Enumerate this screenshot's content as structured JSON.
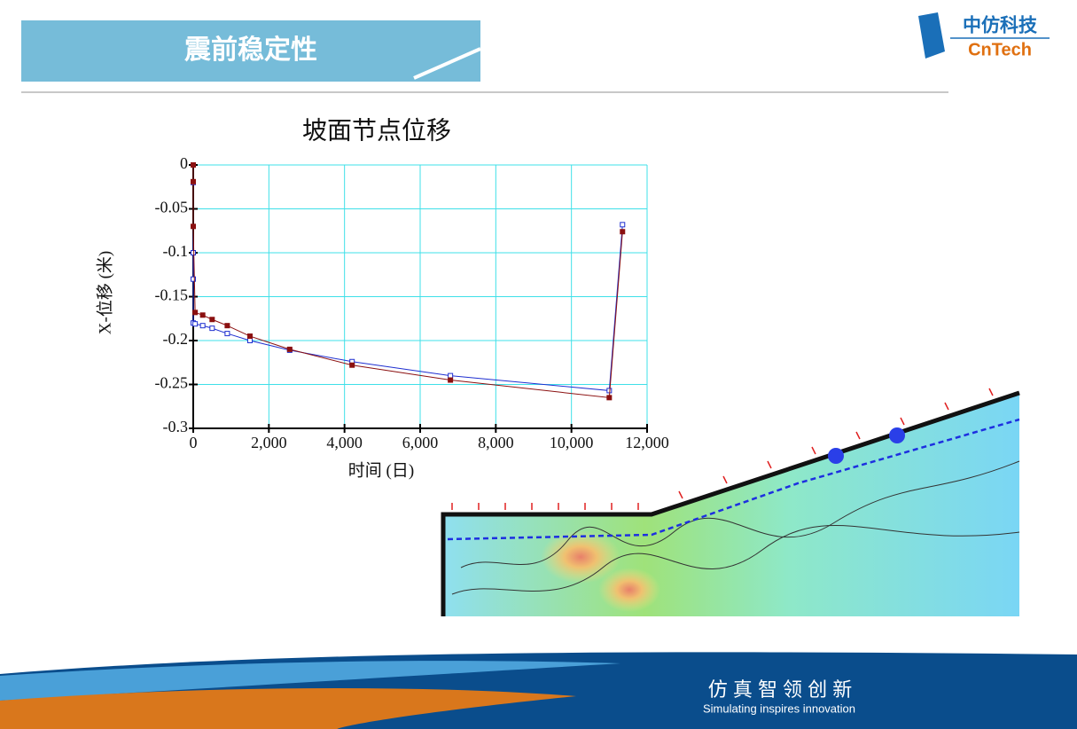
{
  "header": {
    "title": "震前稳定性"
  },
  "logo": {
    "name": "中仿科技",
    "brand": "CnTech"
  },
  "footer": {
    "slogan": "仿 真 智 领 创 新",
    "tagline": "Simulating inspires innovation"
  },
  "chart_data": {
    "type": "line",
    "title": "坡面节点位移",
    "x_label": "时间 (日)",
    "y_label": "X-位移 (米)",
    "series": [
      {
        "color": "#1f2fd0",
        "marker": "open-square",
        "x": [
          0,
          0,
          0,
          0,
          0,
          50,
          250,
          500,
          900,
          1500,
          2550,
          4200,
          6800,
          11000,
          11350
        ],
        "values": [
          0,
          -0.02,
          -0.1,
          -0.13,
          -0.18,
          -0.181,
          -0.183,
          -0.186,
          -0.192,
          -0.2,
          -0.211,
          -0.224,
          -0.24,
          -0.257,
          -0.068
        ]
      },
      {
        "color": "#8b1010",
        "marker": "filled-square",
        "x": [
          0,
          0,
          0,
          50,
          250,
          500,
          900,
          1500,
          2550,
          4200,
          6800,
          11000,
          11350
        ],
        "values": [
          0,
          -0.019,
          -0.07,
          -0.168,
          -0.171,
          -0.176,
          -0.183,
          -0.195,
          -0.21,
          -0.228,
          -0.245,
          -0.265,
          -0.076
        ]
      }
    ],
    "xlim": [
      0,
      12000
    ],
    "ylim": [
      -0.3,
      0
    ],
    "xticks": [
      0,
      {
        "value": 2000,
        "label": "2,000"
      },
      {
        "value": 4000,
        "label": "4,000"
      },
      {
        "value": 6000,
        "label": "6,000"
      },
      {
        "value": 8000,
        "label": "8,000"
      },
      {
        "value": 10000,
        "label": "10,000"
      },
      {
        "value": 12000,
        "label": "12,000"
      }
    ],
    "yticks": [
      0,
      -0.05,
      -0.1,
      -0.15,
      -0.2,
      -0.25,
      -0.3
    ],
    "grid": true,
    "grid_color": "#3fe0e8"
  }
}
